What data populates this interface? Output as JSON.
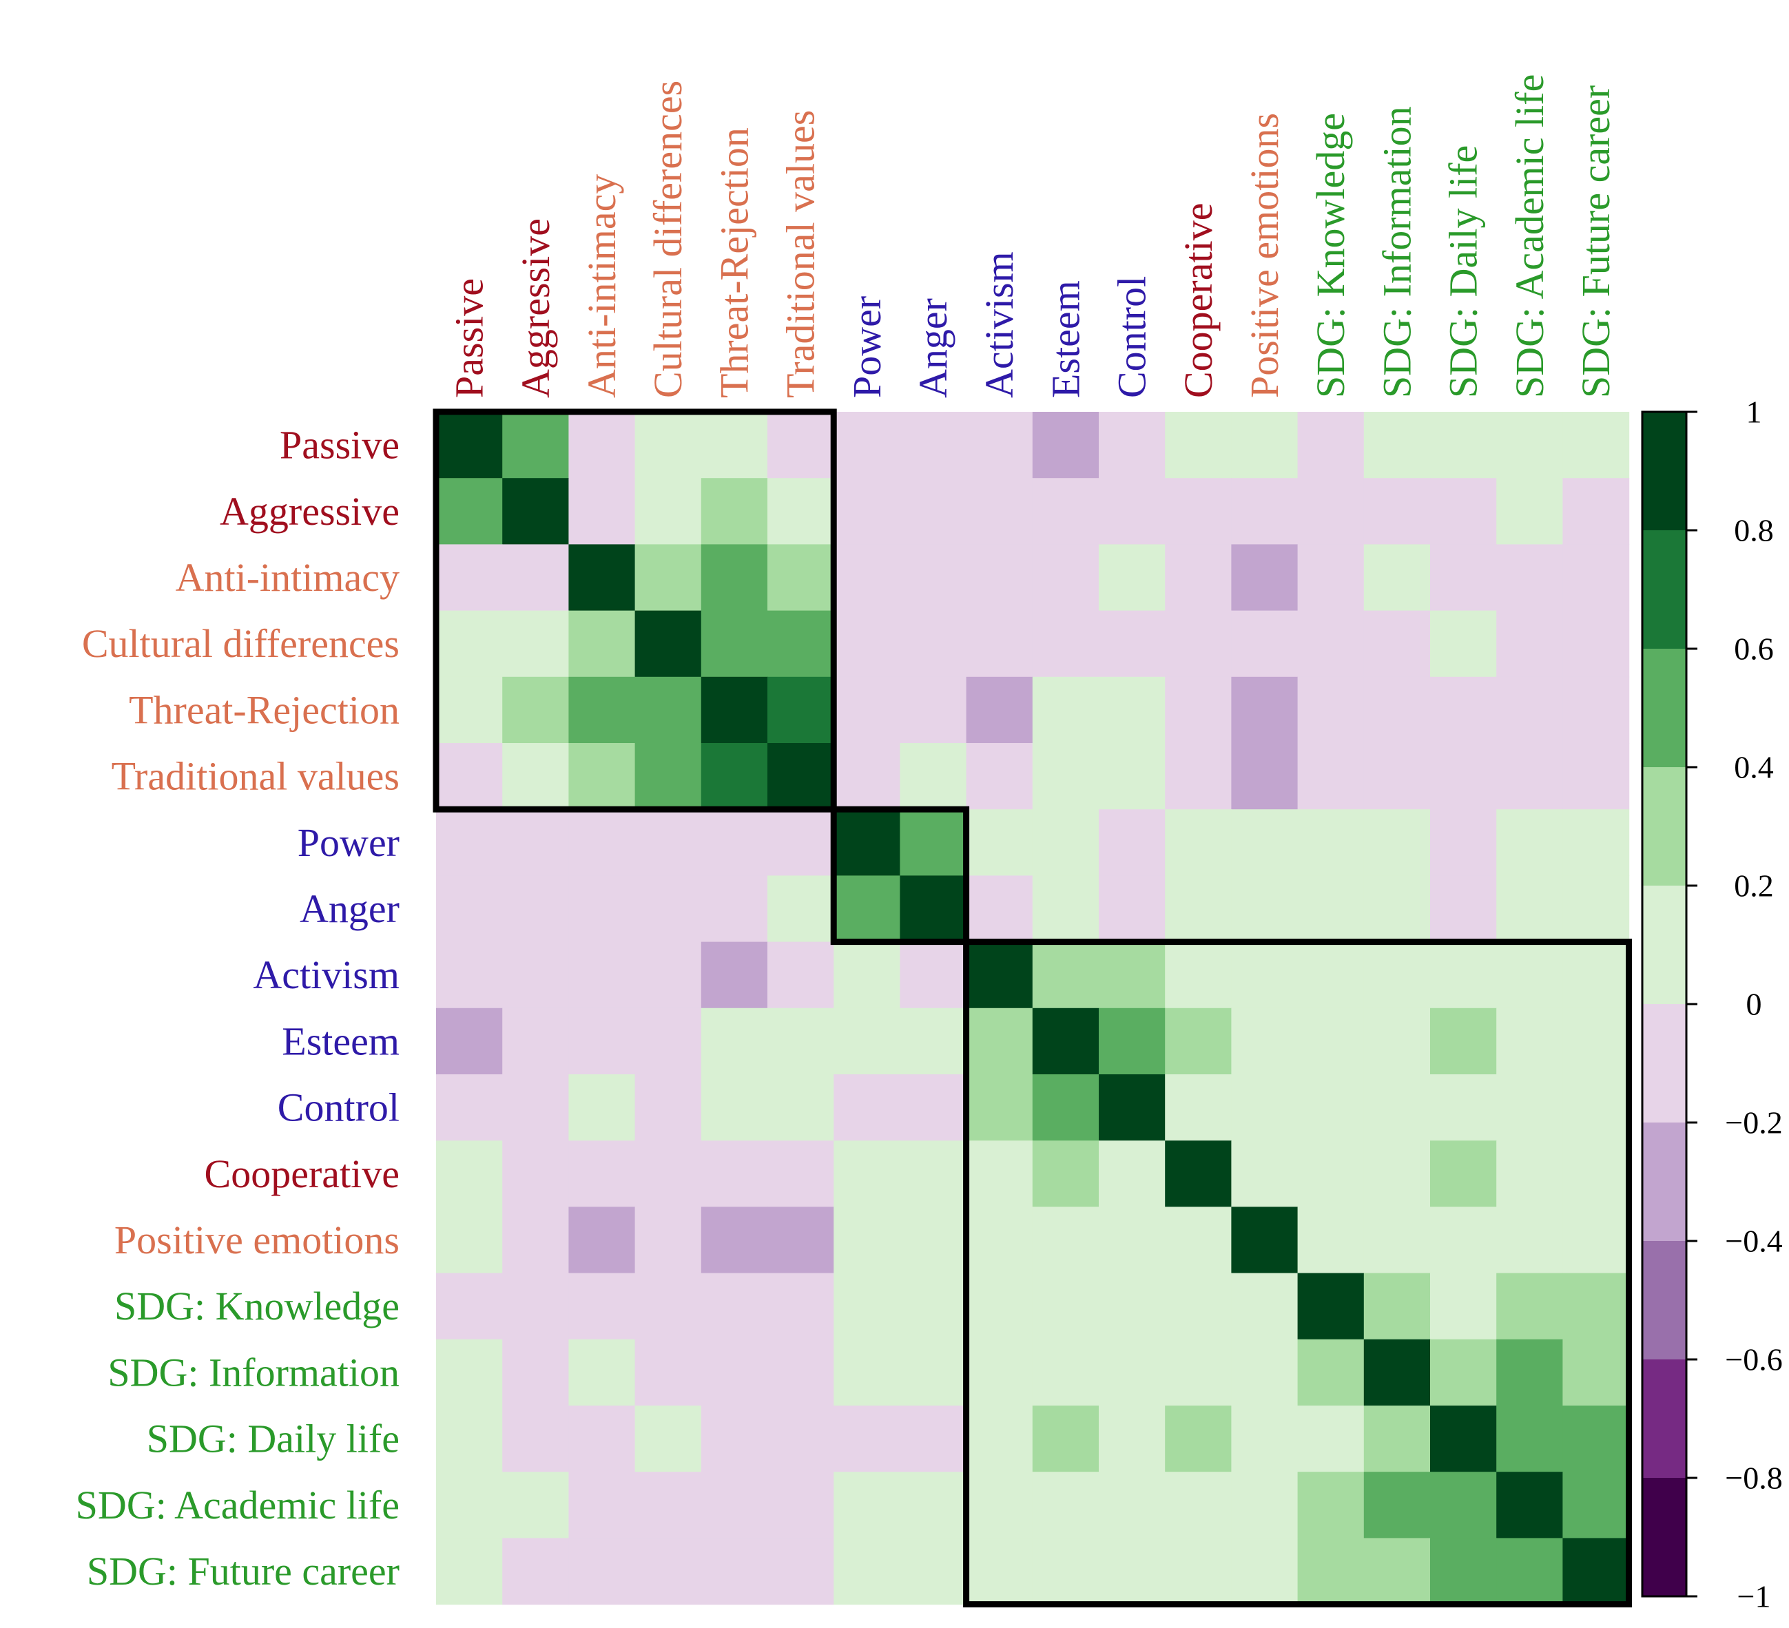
{
  "chart_data": {
    "type": "heatmap",
    "title": "",
    "variables": [
      "Passive",
      "Aggressive",
      "Anti-intimacy",
      "Cultural differences",
      "Threat-Rejection",
      "Traditional values",
      "Power",
      "Anger",
      "Activism",
      "Esteem",
      "Control",
      "Cooperative",
      "Positive emotions",
      "SDG: Knowledge",
      "SDG: Information",
      "SDG: Daily life",
      "SDG: Academic life",
      "SDG: Future career"
    ],
    "label_colors": [
      "#a00e1e",
      "#a00e1e",
      "#d9704f",
      "#d9704f",
      "#d9704f",
      "#d9704f",
      "#2e1aa8",
      "#2e1aa8",
      "#2e1aa8",
      "#2e1aa8",
      "#2e1aa8",
      "#a00e1e",
      "#d9704f",
      "#2a9a2a",
      "#2a9a2a",
      "#2a9a2a",
      "#2a9a2a",
      "#2a9a2a"
    ],
    "values": [
      [
        1.0,
        0.5,
        -0.1,
        0.1,
        0.1,
        -0.1,
        -0.1,
        -0.1,
        -0.1,
        -0.3,
        -0.1,
        0.1,
        0.1,
        -0.1,
        0.1,
        0.1,
        0.1,
        0.1
      ],
      [
        0.5,
        1.0,
        -0.1,
        0.1,
        0.3,
        0.1,
        -0.1,
        -0.1,
        -0.1,
        -0.1,
        -0.1,
        -0.1,
        -0.1,
        -0.1,
        -0.1,
        -0.1,
        0.1,
        -0.1
      ],
      [
        -0.1,
        -0.1,
        1.0,
        0.3,
        0.5,
        0.3,
        -0.1,
        -0.1,
        -0.1,
        -0.1,
        0.1,
        -0.1,
        -0.3,
        -0.1,
        0.1,
        -0.1,
        -0.1,
        -0.1
      ],
      [
        0.1,
        0.1,
        0.3,
        1.0,
        0.5,
        0.5,
        -0.1,
        -0.1,
        -0.1,
        -0.1,
        -0.1,
        -0.1,
        -0.1,
        -0.1,
        -0.1,
        0.1,
        -0.1,
        -0.1
      ],
      [
        0.1,
        0.3,
        0.5,
        0.5,
        1.0,
        0.7,
        -0.1,
        -0.1,
        -0.3,
        0.1,
        0.1,
        -0.1,
        -0.3,
        -0.1,
        -0.1,
        -0.1,
        -0.1,
        -0.1
      ],
      [
        -0.1,
        0.1,
        0.3,
        0.5,
        0.7,
        1.0,
        -0.1,
        0.1,
        -0.1,
        0.1,
        0.1,
        -0.1,
        -0.3,
        -0.1,
        -0.1,
        -0.1,
        -0.1,
        -0.1
      ],
      [
        -0.1,
        -0.1,
        -0.1,
        -0.1,
        -0.1,
        -0.1,
        1.0,
        0.5,
        0.1,
        0.1,
        -0.1,
        0.1,
        0.1,
        0.1,
        0.1,
        -0.1,
        0.1,
        0.1
      ],
      [
        -0.1,
        -0.1,
        -0.1,
        -0.1,
        -0.1,
        0.1,
        0.5,
        1.0,
        -0.1,
        0.1,
        -0.1,
        0.1,
        0.1,
        0.1,
        0.1,
        -0.1,
        0.1,
        0.1
      ],
      [
        -0.1,
        -0.1,
        -0.1,
        -0.1,
        -0.3,
        -0.1,
        0.1,
        -0.1,
        1.0,
        0.3,
        0.3,
        0.1,
        0.1,
        0.1,
        0.1,
        0.1,
        0.1,
        0.1
      ],
      [
        -0.3,
        -0.1,
        -0.1,
        -0.1,
        0.1,
        0.1,
        0.1,
        0.1,
        0.3,
        1.0,
        0.5,
        0.3,
        0.1,
        0.1,
        0.1,
        0.3,
        0.1,
        0.1
      ],
      [
        -0.1,
        -0.1,
        0.1,
        -0.1,
        0.1,
        0.1,
        -0.1,
        -0.1,
        0.3,
        0.5,
        1.0,
        0.1,
        0.1,
        0.1,
        0.1,
        0.1,
        0.1,
        0.1
      ],
      [
        0.1,
        -0.1,
        -0.1,
        -0.1,
        -0.1,
        -0.1,
        0.1,
        0.1,
        0.1,
        0.3,
        0.1,
        1.0,
        0.1,
        0.1,
        0.1,
        0.3,
        0.1,
        0.1
      ],
      [
        0.1,
        -0.1,
        -0.3,
        -0.1,
        -0.3,
        -0.3,
        0.1,
        0.1,
        0.1,
        0.1,
        0.1,
        0.1,
        1.0,
        0.1,
        0.1,
        0.1,
        0.1,
        0.1
      ],
      [
        -0.1,
        -0.1,
        -0.1,
        -0.1,
        -0.1,
        -0.1,
        0.1,
        0.1,
        0.1,
        0.1,
        0.1,
        0.1,
        0.1,
        1.0,
        0.3,
        0.1,
        0.3,
        0.3
      ],
      [
        0.1,
        -0.1,
        0.1,
        -0.1,
        -0.1,
        -0.1,
        0.1,
        0.1,
        0.1,
        0.1,
        0.1,
        0.1,
        0.1,
        0.3,
        1.0,
        0.3,
        0.5,
        0.3
      ],
      [
        0.1,
        -0.1,
        -0.1,
        0.1,
        -0.1,
        -0.1,
        -0.1,
        -0.1,
        0.1,
        0.3,
        0.1,
        0.3,
        0.1,
        0.1,
        0.3,
        1.0,
        0.5,
        0.5
      ],
      [
        0.1,
        0.1,
        -0.1,
        -0.1,
        -0.1,
        -0.1,
        0.1,
        0.1,
        0.1,
        0.1,
        0.1,
        0.1,
        0.1,
        0.3,
        0.5,
        0.5,
        1.0,
        0.5
      ],
      [
        0.1,
        -0.1,
        -0.1,
        -0.1,
        -0.1,
        -0.1,
        0.1,
        0.1,
        0.1,
        0.1,
        0.1,
        0.1,
        0.1,
        0.3,
        0.3,
        0.5,
        0.5,
        1.0
      ]
    ],
    "blocks": [
      {
        "start": 0,
        "end": 5
      },
      {
        "start": 6,
        "end": 7
      },
      {
        "start": 8,
        "end": 17
      }
    ],
    "colorbar": {
      "range": [
        -1,
        1
      ],
      "bins": [
        {
          "lo": 0.8,
          "hi": 1.0,
          "color": "#00441b"
        },
        {
          "lo": 0.6,
          "hi": 0.8,
          "color": "#1b7837"
        },
        {
          "lo": 0.4,
          "hi": 0.6,
          "color": "#5aae61"
        },
        {
          "lo": 0.2,
          "hi": 0.4,
          "color": "#a6dba0"
        },
        {
          "lo": 0.0,
          "hi": 0.2,
          "color": "#d9f0d3"
        },
        {
          "lo": -0.2,
          "hi": 0.0,
          "color": "#e7d4e8"
        },
        {
          "lo": -0.4,
          "hi": -0.2,
          "color": "#c2a5cf"
        },
        {
          "lo": -0.6,
          "hi": -0.4,
          "color": "#9970ab"
        },
        {
          "lo": -0.8,
          "hi": -0.6,
          "color": "#762a83"
        },
        {
          "lo": -1.0,
          "hi": -0.8,
          "color": "#40004b"
        }
      ],
      "tick_values": [
        1,
        0.8,
        0.6,
        0.4,
        0.2,
        0,
        -0.2,
        -0.4,
        -0.6,
        -0.8,
        -1
      ],
      "tick_labels": [
        "1",
        "0.8",
        "0.6",
        "0.4",
        "0.2",
        "0",
        "−0.2",
        "−0.4",
        "−0.6",
        "−0.8",
        "−1"
      ]
    }
  }
}
